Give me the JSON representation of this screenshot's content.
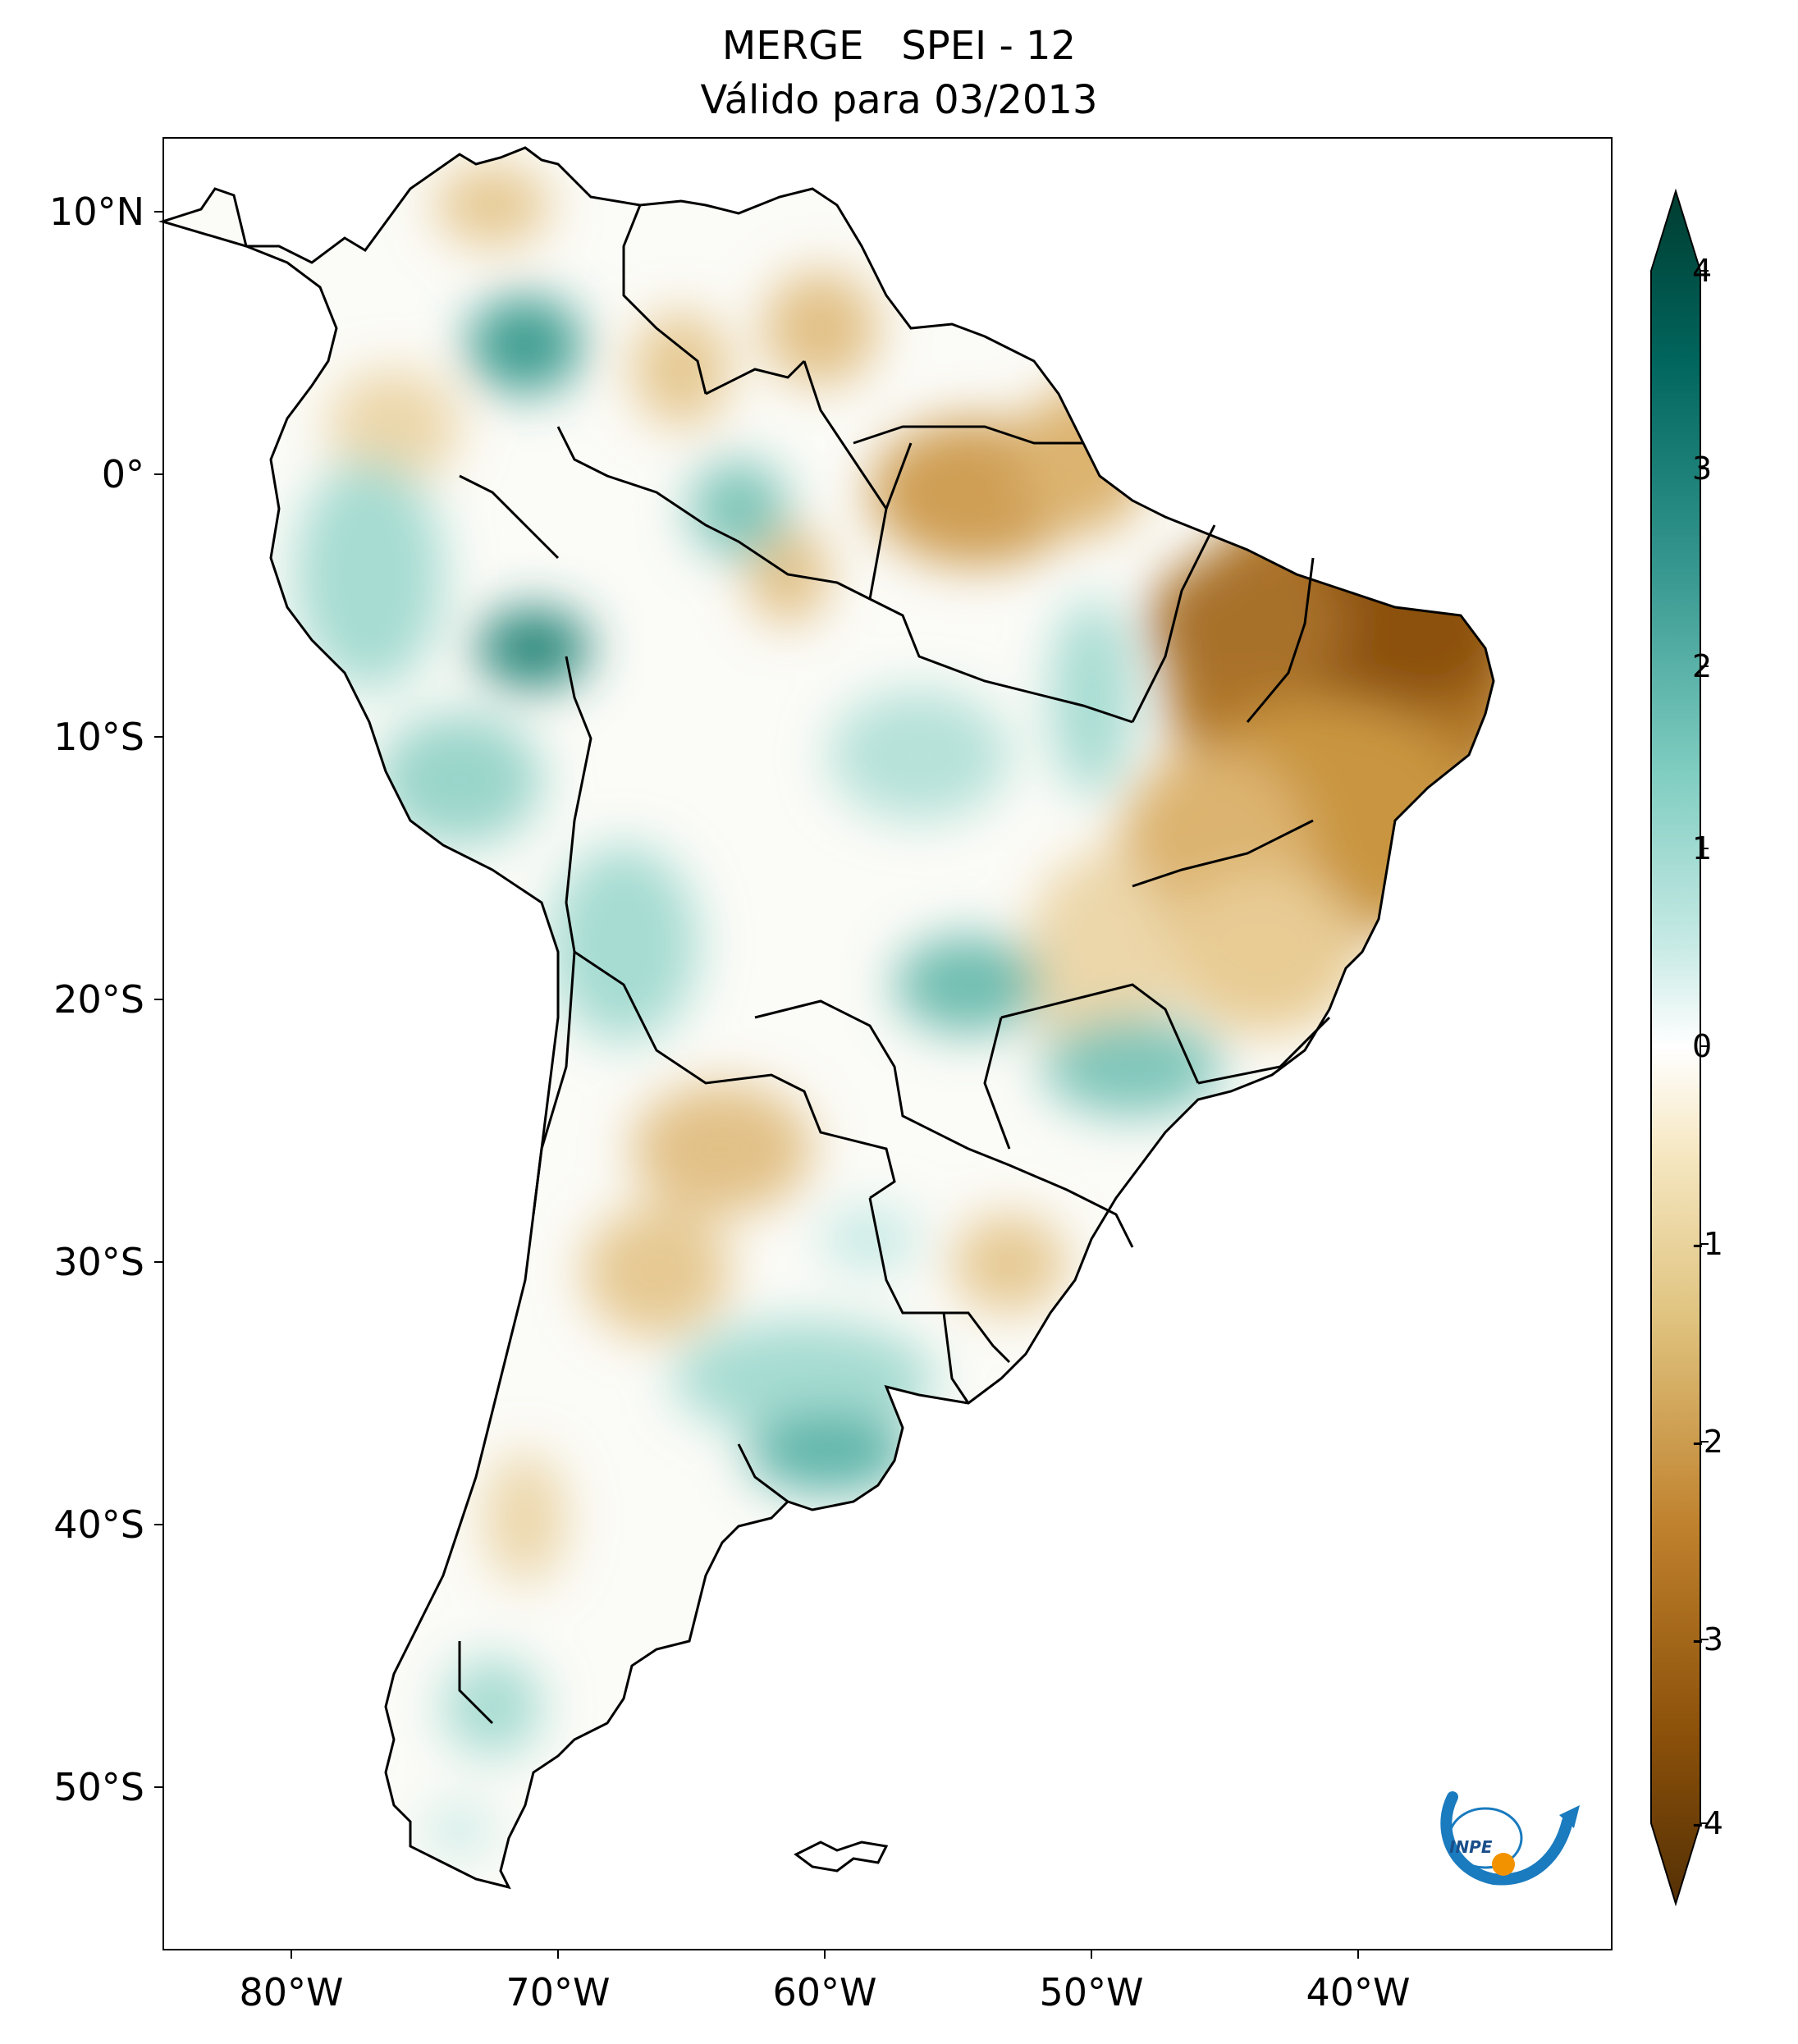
{
  "title": {
    "line1": "MERGE   SPEI - 12",
    "line2": "Válido para 03/2013"
  },
  "map": {
    "region": "South America",
    "lat_ticks": [
      "10°N",
      "0°",
      "10°S",
      "20°S",
      "30°S",
      "40°S",
      "50°S"
    ],
    "lon_ticks": [
      "80°W",
      "70°W",
      "60°W",
      "50°W",
      "40°W"
    ],
    "lon_range": [
      -85,
      -30
    ],
    "lat_range": [
      -56,
      13
    ]
  },
  "colorbar": {
    "ticks": [
      "4",
      "3",
      "2",
      "1",
      "0",
      "-1",
      "-2",
      "-3",
      "-4"
    ],
    "range": [
      -4,
      4
    ],
    "extend": "both",
    "palette": [
      "#543005",
      "#8c510a",
      "#bf812d",
      "#dfc27d",
      "#f6e8c3",
      "#ffffff",
      "#c7eae5",
      "#80cdc1",
      "#35978f",
      "#01665e",
      "#003c30"
    ]
  },
  "logo": {
    "name": "inpe-logo",
    "text": "INPE"
  },
  "colors": {
    "dry_strong": "#8c510a",
    "dry_mid": "#c99a4f",
    "dry_light": "#ecd9b0",
    "wet_light": "#bfe5de",
    "wet_mid": "#5fb5aa",
    "wet_strong": "#0e6e63",
    "logo_blue": "#1a7bbf",
    "logo_orange": "#f39200"
  }
}
